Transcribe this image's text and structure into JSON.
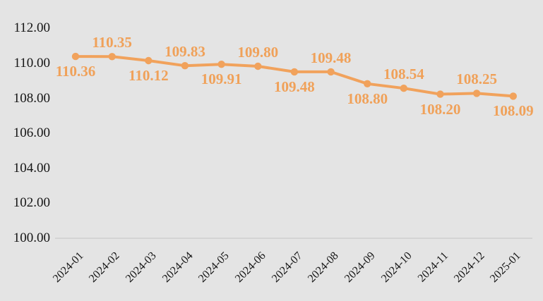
{
  "chart_data": {
    "type": "line",
    "title": "",
    "x": [
      "2024-01",
      "2024-02",
      "2024-03",
      "2024-04",
      "2024-05",
      "2024-06",
      "2024-07",
      "2024-08",
      "2024-09",
      "2024-10",
      "2024-11",
      "2024-12",
      "2025-01"
    ],
    "series": [
      {
        "name": "",
        "values": [
          110.36,
          110.35,
          110.12,
          109.83,
          109.91,
          109.8,
          109.48,
          109.48,
          108.8,
          108.54,
          108.2,
          108.25,
          108.09
        ]
      }
    ],
    "data_labels": [
      "110.36",
      "110.35",
      "110.12",
      "109.83",
      "109.91",
      "109.80",
      "109.48",
      "109.48",
      "108.80",
      "108.54",
      "108.20",
      "108.25",
      "108.09"
    ],
    "y_axis": {
      "ticks": [
        "112.00",
        "110.00",
        "108.00",
        "106.00",
        "104.00",
        "102.00",
        "100.00"
      ],
      "min": 100,
      "max": 112,
      "step": 2
    },
    "xlabel": "",
    "ylabel": "",
    "grid": false,
    "legend": false,
    "marker": "circle",
    "colors": {
      "series": "#f1a25c",
      "data_label_text": "#f0a159",
      "axis_text": "#161616",
      "axis_line": "#d4d4d4",
      "background": "#e4e4e4"
    }
  }
}
